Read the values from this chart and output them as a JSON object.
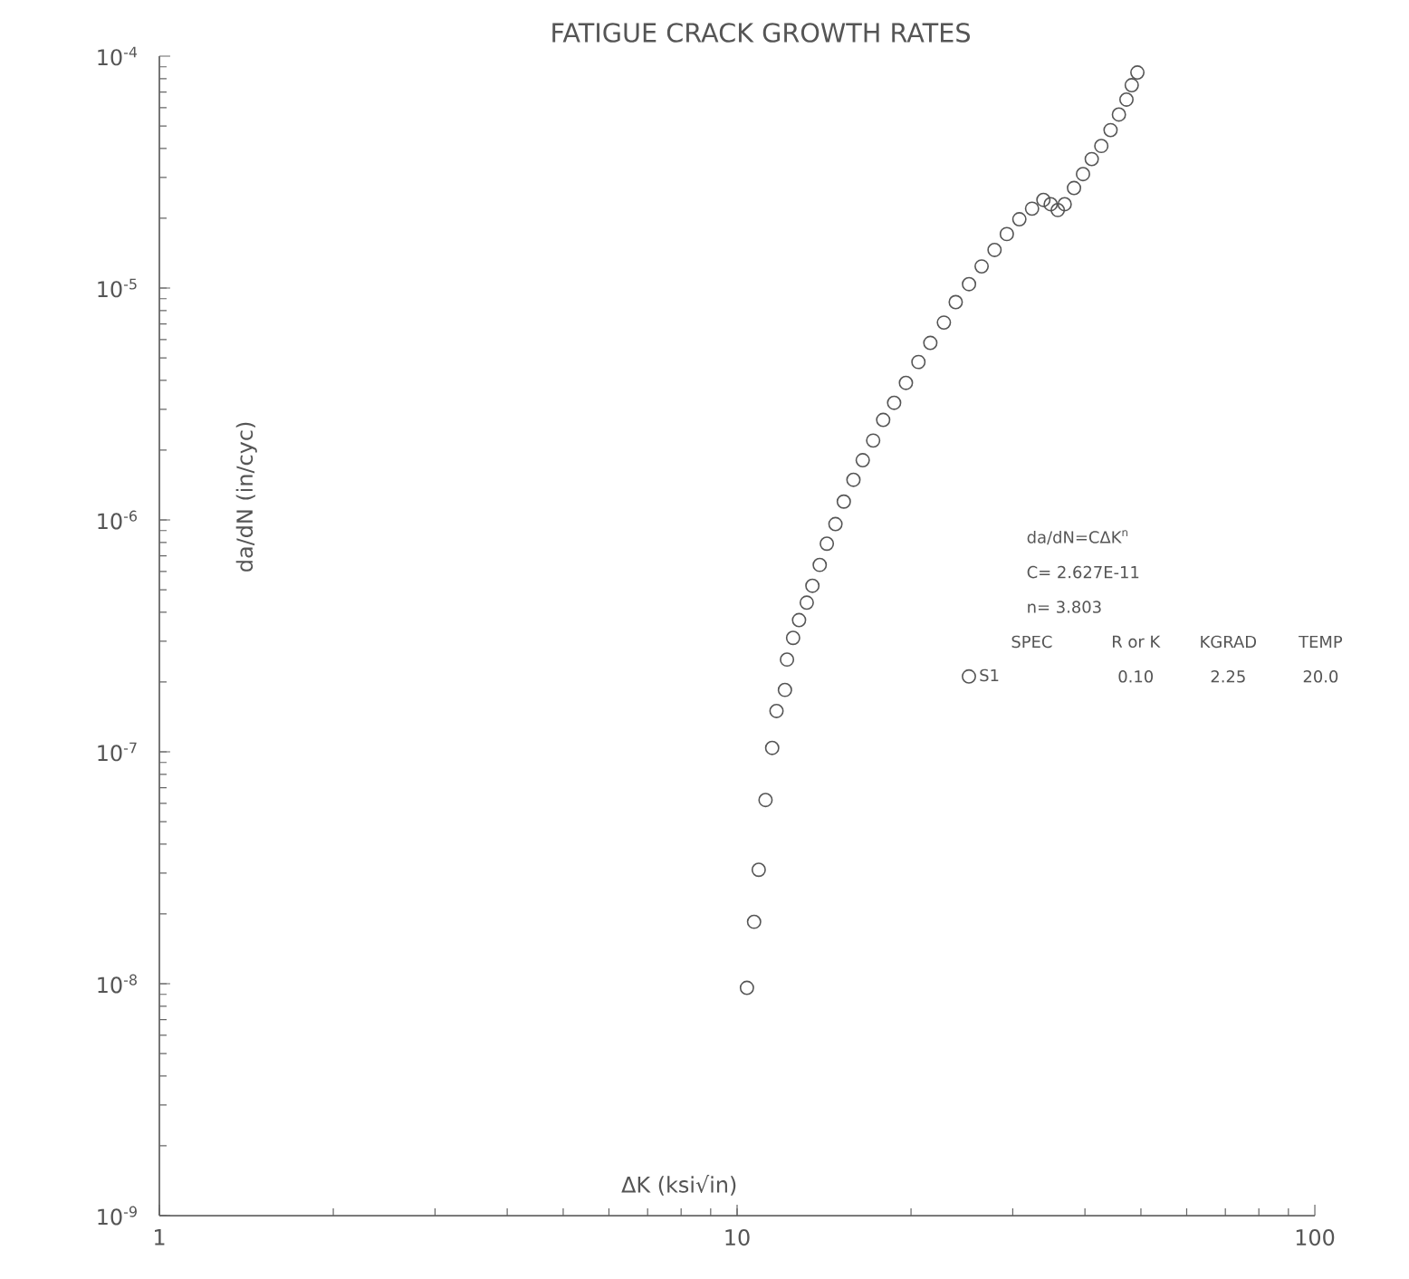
{
  "chart_data": {
    "type": "scatter",
    "title": "FATIGUE CRACK GROWTH RATES",
    "xlabel": "ΔK  (ksi√in)",
    "ylabel": "da/dN  (in/cyc)",
    "log": "xy",
    "marker": "circle",
    "legend": "right",
    "grid": false,
    "xlim": [
      1,
      100
    ],
    "xticks": [
      1,
      10,
      100
    ],
    "ylim": [
      1e-09,
      0.0001
    ],
    "yticks": [
      {
        "value": 1e-09,
        "label": "10$^{-9}$"
      },
      {
        "value": 1e-08,
        "label": "10$^{-8}$"
      },
      {
        "value": 1e-07,
        "label": "10$^{-7}$"
      },
      {
        "value": 1e-06,
        "label": "10$^{-6}$"
      },
      {
        "value": 1e-05,
        "label": "10$^{-5}$"
      },
      {
        "value": 0.0001,
        "label": "10$^{-4}$"
      }
    ],
    "annotations": [
      "da/dN=CΔK$^{n}$",
      "C= 2.627E-11",
      "n= 3.803",
      "SPEC",
      "R or K",
      "KGRAD",
      "TEMP",
      "0.10",
      "2.25",
      "20.0"
    ],
    "series": [
      {
        "name": "S1",
        "color": "#555555",
        "x": [
          10.4,
          10.7,
          10.9,
          11.2,
          11.5,
          11.7,
          12.1,
          12.2,
          12.5,
          12.8,
          13.2,
          13.5,
          13.9,
          14.3,
          14.8,
          15.3,
          15.9,
          16.5,
          17.2,
          17.9,
          18.7,
          19.6,
          20.6,
          21.6,
          22.8,
          23.9,
          25.2,
          26.5,
          27.9,
          29.3,
          30.8,
          32.4,
          33.9,
          34.9,
          35.9,
          36.9,
          38.3,
          39.7,
          41.1,
          42.7,
          44.3,
          45.8,
          47.2,
          48.2,
          49.3
        ],
        "values": [
          9.6e-09,
          1.85e-08,
          3.1e-08,
          6.2e-08,
          1.04e-07,
          1.5e-07,
          1.85e-07,
          2.5e-07,
          3.1e-07,
          3.7e-07,
          4.4e-07,
          5.2e-07,
          6.4e-07,
          7.9e-07,
          9.6e-07,
          1.2e-06,
          1.49e-06,
          1.81e-06,
          2.2e-06,
          2.7e-06,
          3.2e-06,
          3.9e-06,
          4.8e-06,
          5.8e-06,
          7.1e-06,
          8.7e-06,
          1.04e-05,
          1.24e-05,
          1.46e-05,
          1.71e-05,
          1.98e-05,
          2.2e-05,
          2.4e-05,
          2.3e-05,
          2.17e-05,
          2.3e-05,
          2.7e-05,
          3.1e-05,
          3.6e-05,
          4.1e-05,
          4.8e-05,
          5.6e-05,
          6.5e-05,
          7.5e-05,
          8.5e-05
        ]
      }
    ]
  }
}
